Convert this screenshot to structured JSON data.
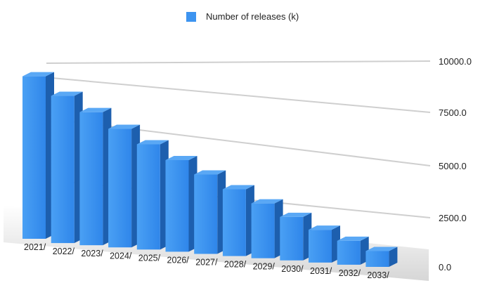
{
  "chart_data": {
    "type": "bar",
    "legend": {
      "label": "Number of releases (k)",
      "color": "#3d94f0",
      "position": "top-center"
    },
    "categories": [
      "2021/",
      "2022/",
      "2023/",
      "2024/",
      "2025/",
      "2026/",
      "2027/",
      "2028/",
      "2029/",
      "2030/",
      "2031/",
      "2032/",
      "2033/"
    ],
    "series": [
      {
        "name": "Number of releases (k)",
        "values": [
          9200,
          8200,
          7300,
          6400,
          5600,
          4800,
          4100,
          3400,
          2750,
          2150,
          1600,
          1150,
          750
        ]
      }
    ],
    "ylim": [
      0,
      10000
    ],
    "yticks": [
      "0.0",
      "2500.0",
      "5000.0",
      "7500.0",
      "10000.0"
    ],
    "ytick_values": [
      0,
      2500,
      5000,
      7500,
      10000
    ],
    "grid": true,
    "bar_colors": {
      "front": "#3d94f0",
      "side": "#1d5fae",
      "top": "#5aa8f5"
    }
  }
}
